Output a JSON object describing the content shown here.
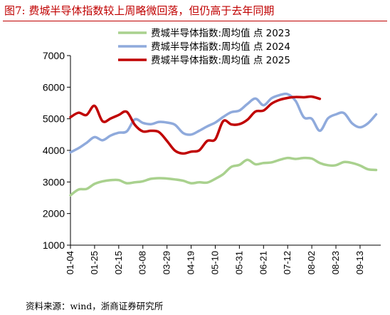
{
  "header": {
    "title": "图7:    费城半导体指数较上周略微回落，但仍高于去年同期"
  },
  "footer": {
    "source": "资料来源：wind，浙商证券研究所"
  },
  "chart_data": {
    "type": "line",
    "title": "",
    "xlabel": "",
    "ylabel": "",
    "ylim": [
      1000,
      7000
    ],
    "yticks": [
      1000,
      2000,
      3000,
      4000,
      5000,
      6000,
      7000
    ],
    "x_date_ticks": [
      "01-04",
      "01-25",
      "02-15",
      "03-08",
      "03-29",
      "04-19",
      "05-10",
      "05-31",
      "06-21",
      "07-12",
      "08-02",
      "08-23",
      "09-13"
    ],
    "xlim": [
      "01-04",
      "10-01"
    ],
    "grid": false,
    "legend": "top",
    "series": [
      {
        "name": "费城半导体指数:周均值  点 2023",
        "color": "#a9d18e",
        "points": [
          [
            "01-04",
            2580
          ],
          [
            "01-11",
            2760
          ],
          [
            "01-18",
            2780
          ],
          [
            "01-25",
            2940
          ],
          [
            "02-01",
            3020
          ],
          [
            "02-08",
            3060
          ],
          [
            "02-15",
            3060
          ],
          [
            "02-22",
            2960
          ],
          [
            "03-01",
            2990
          ],
          [
            "03-08",
            3020
          ],
          [
            "03-15",
            3100
          ],
          [
            "03-22",
            3120
          ],
          [
            "03-29",
            3110
          ],
          [
            "04-05",
            3080
          ],
          [
            "04-12",
            3040
          ],
          [
            "04-19",
            2960
          ],
          [
            "04-26",
            2990
          ],
          [
            "05-03",
            2980
          ],
          [
            "05-10",
            3100
          ],
          [
            "05-17",
            3250
          ],
          [
            "05-24",
            3480
          ],
          [
            "05-31",
            3540
          ],
          [
            "06-07",
            3700
          ],
          [
            "06-14",
            3560
          ],
          [
            "06-21",
            3600
          ],
          [
            "06-28",
            3620
          ],
          [
            "07-05",
            3700
          ],
          [
            "07-12",
            3760
          ],
          [
            "07-19",
            3730
          ],
          [
            "07-26",
            3760
          ],
          [
            "08-02",
            3740
          ],
          [
            "08-09",
            3600
          ],
          [
            "08-16",
            3530
          ],
          [
            "08-23",
            3530
          ],
          [
            "08-30",
            3630
          ],
          [
            "09-06",
            3600
          ],
          [
            "09-13",
            3520
          ],
          [
            "09-20",
            3400
          ],
          [
            "09-27",
            3380
          ]
        ]
      },
      {
        "name": "费城半导体指数:周均值  点 2024",
        "color": "#8faadc",
        "points": [
          [
            "01-04",
            3940
          ],
          [
            "01-11",
            4070
          ],
          [
            "01-18",
            4240
          ],
          [
            "01-25",
            4420
          ],
          [
            "02-01",
            4320
          ],
          [
            "02-08",
            4470
          ],
          [
            "02-15",
            4560
          ],
          [
            "02-22",
            4600
          ],
          [
            "03-01",
            4980
          ],
          [
            "03-08",
            4870
          ],
          [
            "03-15",
            4830
          ],
          [
            "03-22",
            4900
          ],
          [
            "03-29",
            4880
          ],
          [
            "04-05",
            4810
          ],
          [
            "04-12",
            4550
          ],
          [
            "04-19",
            4500
          ],
          [
            "04-26",
            4620
          ],
          [
            "05-03",
            4760
          ],
          [
            "05-10",
            4880
          ],
          [
            "05-17",
            5060
          ],
          [
            "05-24",
            5210
          ],
          [
            "05-31",
            5260
          ],
          [
            "06-07",
            5470
          ],
          [
            "06-14",
            5640
          ],
          [
            "06-21",
            5430
          ],
          [
            "06-28",
            5650
          ],
          [
            "07-05",
            5750
          ],
          [
            "07-12",
            5780
          ],
          [
            "07-19",
            5560
          ],
          [
            "07-26",
            5050
          ],
          [
            "08-02",
            5000
          ],
          [
            "08-09",
            4620
          ],
          [
            "08-16",
            5010
          ],
          [
            "08-23",
            5140
          ],
          [
            "08-30",
            5180
          ],
          [
            "09-06",
            4860
          ],
          [
            "09-13",
            4730
          ],
          [
            "09-20",
            4860
          ],
          [
            "09-27",
            5140
          ]
        ]
      },
      {
        "name": "费城半导体指数:周均值  点 2025",
        "color": "#c00000",
        "points": [
          [
            "01-04",
            5050
          ],
          [
            "01-11",
            5190
          ],
          [
            "01-18",
            5120
          ],
          [
            "01-25",
            5410
          ],
          [
            "02-01",
            4920
          ],
          [
            "02-08",
            5010
          ],
          [
            "02-15",
            5120
          ],
          [
            "02-22",
            5220
          ],
          [
            "03-01",
            4810
          ],
          [
            "03-08",
            4600
          ],
          [
            "03-15",
            4620
          ],
          [
            "03-22",
            4580
          ],
          [
            "03-29",
            4300
          ],
          [
            "04-05",
            3990
          ],
          [
            "04-12",
            3900
          ],
          [
            "04-19",
            3960
          ],
          [
            "04-26",
            4000
          ],
          [
            "05-03",
            4300
          ],
          [
            "05-10",
            4350
          ],
          [
            "05-17",
            4930
          ],
          [
            "05-24",
            4820
          ],
          [
            "05-31",
            4830
          ],
          [
            "06-07",
            4970
          ],
          [
            "06-14",
            5230
          ],
          [
            "06-21",
            5260
          ],
          [
            "06-28",
            5480
          ],
          [
            "07-05",
            5600
          ],
          [
            "07-12",
            5660
          ],
          [
            "07-19",
            5690
          ],
          [
            "07-26",
            5680
          ],
          [
            "08-02",
            5700
          ],
          [
            "08-09",
            5630
          ]
        ]
      }
    ]
  }
}
